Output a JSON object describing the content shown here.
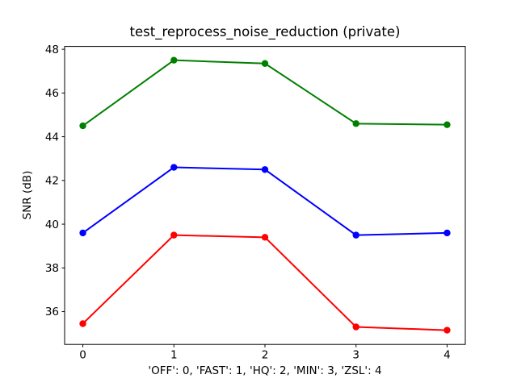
{
  "chart_data": {
    "type": "line",
    "title": "test_reprocess_noise_reduction (private)",
    "xlabel": "'OFF': 0, 'FAST': 1, 'HQ': 2, 'MIN': 3, 'ZSL': 4",
    "ylabel": "SNR (dB)",
    "x": [
      0,
      1,
      2,
      3,
      4
    ],
    "xtick_labels": [
      "0",
      "1",
      "2",
      "3",
      "4"
    ],
    "yticks": [
      36,
      38,
      40,
      42,
      44,
      46,
      48
    ],
    "xlim": [
      -0.2,
      4.2
    ],
    "ylim": [
      34.5,
      48.13
    ],
    "grid": false,
    "legend": "none",
    "background_color": "#ffffff",
    "axis_color": "#000000",
    "series": [
      {
        "name": "green-series",
        "color": "#008000",
        "marker": "circle",
        "values": [
          44.5,
          47.5,
          47.35,
          44.6,
          44.55
        ]
      },
      {
        "name": "blue-series",
        "color": "#0000ff",
        "marker": "circle",
        "values": [
          39.6,
          42.6,
          42.5,
          39.5,
          39.6
        ]
      },
      {
        "name": "red-series",
        "color": "#ff0000",
        "marker": "circle",
        "values": [
          35.45,
          39.5,
          39.4,
          35.3,
          35.15
        ]
      }
    ]
  }
}
